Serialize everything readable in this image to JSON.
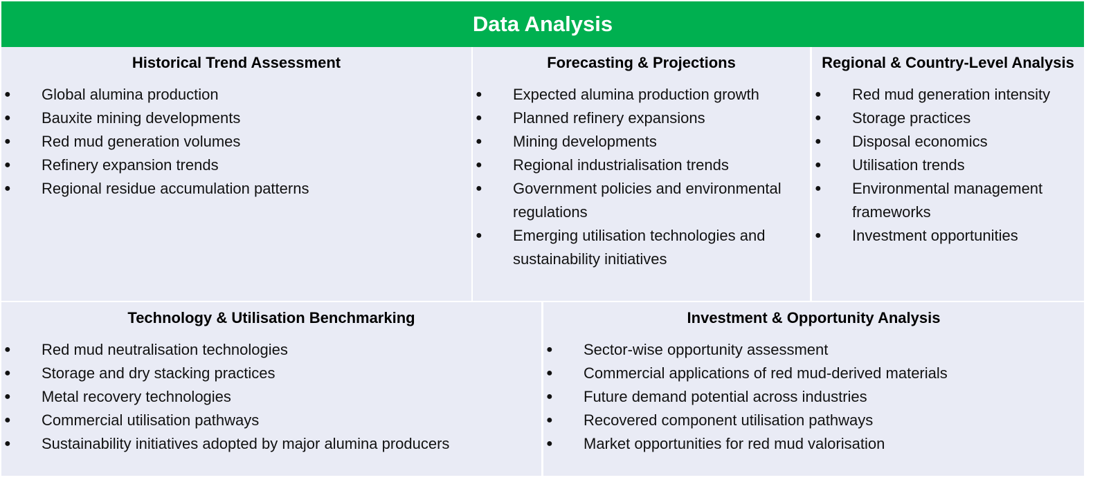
{
  "title": "Data Analysis",
  "sections": [
    {
      "heading": "Historical Trend Assessment",
      "items": [
        "Global alumina production",
        "Bauxite mining developments",
        "Red mud generation volumes",
        "Refinery expansion trends",
        "Regional residue accumulation patterns"
      ]
    },
    {
      "heading": "Forecasting & Projections",
      "items": [
        "Expected alumina production growth",
        "Planned refinery expansions",
        "Mining developments",
        "Regional industrialisation trends",
        "Government policies and environmental regulations",
        "Emerging utilisation technologies and sustainability initiatives"
      ]
    },
    {
      "heading": "Regional & Country-Level Analysis",
      "items": [
        "Red mud generation intensity",
        "Storage practices",
        "Disposal economics",
        "Utilisation trends",
        "Environmental management frameworks",
        "Investment opportunities"
      ]
    },
    {
      "heading": "Technology & Utilisation Benchmarking",
      "items": [
        "Red mud neutralisation technologies",
        "Storage and dry stacking practices",
        "Metal recovery technologies",
        "Commercial utilisation pathways",
        "Sustainability initiatives adopted by major alumina producers"
      ]
    },
    {
      "heading": "Investment & Opportunity Analysis",
      "items": [
        "Sector-wise opportunity assessment",
        "Commercial applications of red mud-derived materials",
        "Future demand potential across industries",
        "Recovered component utilisation pathways",
        "Market opportunities for red mud valorisation"
      ]
    }
  ]
}
